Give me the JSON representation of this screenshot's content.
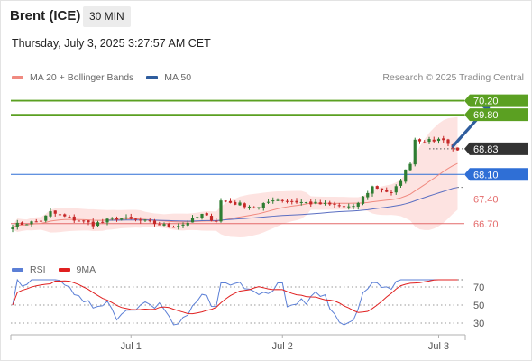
{
  "header": {
    "title": "Brent (ICE)",
    "interval": "30 MIN",
    "datetime": "Thursday, July 3, 2025 3:27:57 AM CET",
    "credit": "Research © 2025 Trading Central"
  },
  "legend_main": [
    {
      "label": "MA 20 + Bollinger Bands",
      "color": "#f08a80"
    },
    {
      "label": "MA 50",
      "color": "#2f5d9e"
    }
  ],
  "legend_rsi": [
    {
      "label": "RSI",
      "color": "#5b7fd6"
    },
    {
      "label": "9MA",
      "color": "#e02020"
    }
  ],
  "colors": {
    "up": "#2e7d32",
    "down": "#c62828",
    "target": "#5ba022",
    "pivot": "#2f6fd6",
    "support": "#e46a6a",
    "arrow": "#2f5d9e",
    "current_label": "#333333",
    "band_fill": "#fde3e1",
    "ma20": "#f08a80",
    "ma50": "#5b6fc2"
  },
  "chart_data": [
    {
      "type": "candlestick",
      "ylim": [
        66.0,
        70.6
      ],
      "x_ticks": [
        {
          "label": "Jul 1",
          "index": 25
        },
        {
          "label": "Jul 2",
          "index": 57
        },
        {
          "label": "Jul 3",
          "index": 90
        }
      ],
      "levels": [
        {
          "value": 70.2,
          "label": "70.20",
          "kind": "target"
        },
        {
          "value": 69.8,
          "label": "69.80",
          "kind": "target"
        },
        {
          "value": 68.83,
          "label": "68.83",
          "kind": "current"
        },
        {
          "value": 68.1,
          "label": "68.10",
          "kind": "pivot"
        },
        {
          "value": 67.4,
          "label": "67.40",
          "kind": "support"
        },
        {
          "value": 66.7,
          "label": "66.70",
          "kind": "support"
        }
      ],
      "forecast_arrow": {
        "from_index": 93,
        "from_value": 68.9,
        "to_index": 101,
        "to_value": 70.15
      },
      "candle_count": 95
    },
    {
      "type": "line",
      "ylim": [
        20,
        80
      ],
      "ticks": [
        70,
        50,
        30
      ],
      "series": [
        {
          "name": "RSI"
        },
        {
          "name": "9MA"
        }
      ]
    }
  ]
}
